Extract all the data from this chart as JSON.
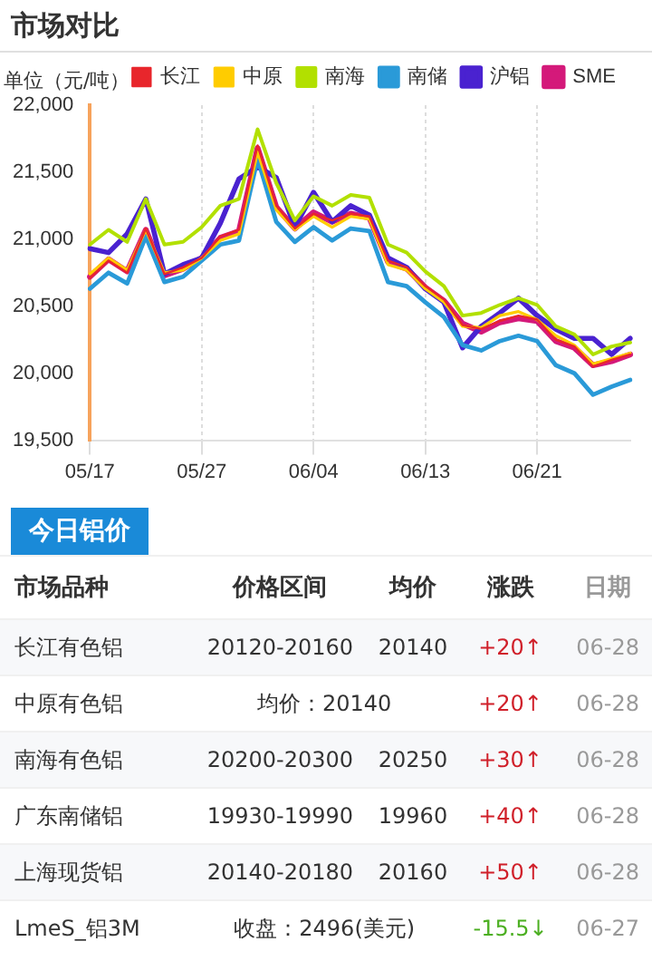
{
  "chart_data": {
    "type": "line",
    "title": "市场对比",
    "ylabel": "单位（元/吨）",
    "categories": [
      "05/17",
      null,
      null,
      null,
      null,
      null,
      "05/27",
      null,
      null,
      null,
      null,
      null,
      "06/04",
      null,
      null,
      null,
      null,
      null,
      "06/13",
      null,
      null,
      null,
      null,
      null,
      "06/21",
      null,
      null,
      null,
      null,
      null
    ],
    "series": [
      {
        "name": "长江",
        "color": "#e8262c",
        "values": [
          20710,
          20840,
          20750,
          21080,
          20740,
          20790,
          20860,
          21020,
          21070,
          21700,
          21250,
          21080,
          21190,
          21140,
          21190,
          21170,
          20840,
          20790,
          20650,
          20550,
          20360,
          20330,
          20390,
          20430,
          20400,
          20250,
          20200,
          20050,
          20100,
          20140
        ]
      },
      {
        "name": "中原",
        "color": "#ffcc00",
        "values": [
          20740,
          20860,
          20770,
          21070,
          20750,
          20770,
          20860,
          20990,
          21040,
          21650,
          21220,
          21070,
          21170,
          21090,
          21170,
          21150,
          20810,
          20770,
          20630,
          20530,
          20350,
          20340,
          20430,
          20460,
          20400,
          20280,
          20210,
          20070,
          20110,
          20150
        ]
      },
      {
        "name": "南海",
        "color": "#b2e000",
        "values": [
          20960,
          21070,
          20980,
          21300,
          20960,
          20980,
          21090,
          21250,
          21300,
          21820,
          21420,
          21140,
          21320,
          21250,
          21330,
          21310,
          20960,
          20900,
          20760,
          20650,
          20430,
          20450,
          20510,
          20560,
          20510,
          20350,
          20290,
          20140,
          20200,
          20230
        ]
      },
      {
        "name": "南储",
        "color": "#2a9ad8",
        "values": [
          20630,
          20750,
          20670,
          21020,
          20680,
          20720,
          20840,
          20960,
          20990,
          21600,
          21130,
          20980,
          21090,
          20990,
          21080,
          21060,
          20680,
          20650,
          20530,
          20420,
          20210,
          20170,
          20240,
          20280,
          20240,
          20060,
          20000,
          19840,
          19900,
          19950
        ]
      },
      {
        "name": "沪铝",
        "color": "#4a22d0",
        "values": [
          20930,
          20900,
          21040,
          21300,
          20740,
          20810,
          20860,
          21120,
          21450,
          21540,
          21460,
          21090,
          21350,
          21130,
          21250,
          21180,
          20860,
          20790,
          20630,
          20530,
          20190,
          20350,
          20450,
          20560,
          20430,
          20330,
          20260,
          20260,
          20140,
          20260
        ]
      },
      {
        "name": "SME",
        "color": "#d4197a",
        "values": [
          20720,
          20850,
          20760,
          21070,
          20730,
          20780,
          20860,
          21010,
          21060,
          21680,
          21240,
          21080,
          21200,
          21130,
          21190,
          21160,
          20830,
          20780,
          20640,
          20540,
          20370,
          20310,
          20380,
          20410,
          20390,
          20240,
          20190,
          20060,
          20090,
          20140
        ]
      }
    ],
    "ylim": [
      19500,
      22000
    ],
    "yticks": [
      {
        "value": 19500,
        "label": "19,500"
      },
      {
        "value": 20000,
        "label": "20,000"
      },
      {
        "value": 20500,
        "label": "20,500"
      },
      {
        "value": 21000,
        "label": "21,000"
      },
      {
        "value": 21500,
        "label": "21,500"
      },
      {
        "value": 22000,
        "label": "22,000"
      }
    ],
    "grid": "x",
    "legend": "top right",
    "marker": "none",
    "line_style": "solid",
    "annotations": [
      "今日铝价",
      "市场品种",
      "价格区间",
      "均价",
      "涨跌",
      "日期",
      "长江有色铝",
      "20120-20160",
      "20140",
      "+20↑",
      "06-28",
      "中原有色铝",
      "均价：20140",
      "+20↑",
      "06-28",
      "南海有色铝",
      "20200-20300",
      "20250",
      "+30↑",
      "06-28",
      "广东南储铝",
      "19930-19990",
      "19960",
      "+40↑",
      "06-28",
      "上海现货铝",
      "20140-20180",
      "20160",
      "+50↑",
      "06-28",
      "LmeS_铝3M",
      "收盘：2496(美元)",
      "-15.5↓",
      "06-27"
    ]
  }
}
